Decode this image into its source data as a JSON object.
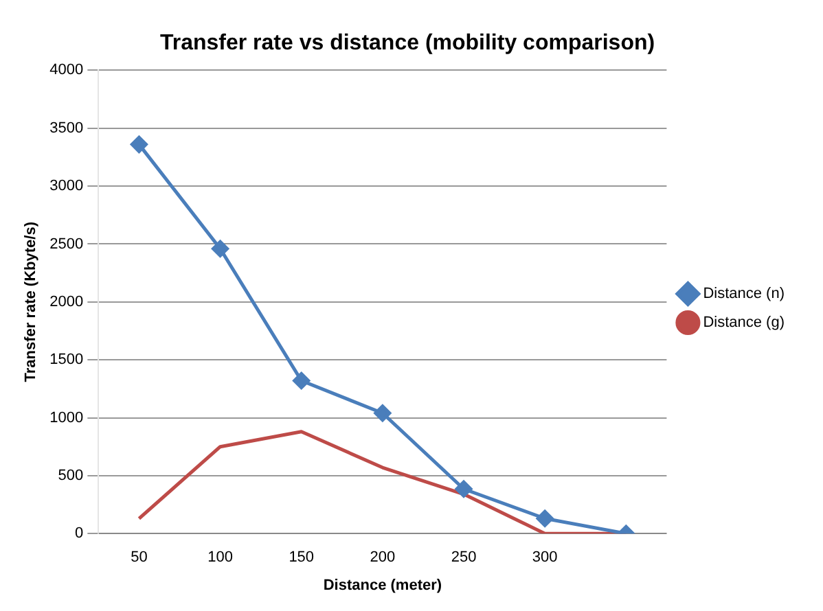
{
  "chart_data": {
    "type": "line",
    "title": "Transfer rate vs distance (mobility comparison)",
    "xlabel": "Distance (meter)",
    "ylabel": "Transfer rate (Kbyte/s)",
    "categories": [
      "50",
      "100",
      "150",
      "200",
      "250",
      "300",
      null
    ],
    "series": [
      {
        "name": "Distance (n)",
        "color": "#4a7ebb",
        "marker": "diamond",
        "values": [
          3360,
          2460,
          1320,
          1040,
          385,
          130,
          0
        ]
      },
      {
        "name": "Distance (g)",
        "color": "#be4b48",
        "marker": "none",
        "values": [
          130,
          750,
          880,
          570,
          340,
          0,
          0
        ]
      }
    ],
    "ylim": [
      0,
      4000
    ],
    "yticks": [
      0,
      500,
      1000,
      1500,
      2000,
      2500,
      3000,
      3500,
      4000
    ],
    "grid": "y",
    "legend": "right"
  }
}
